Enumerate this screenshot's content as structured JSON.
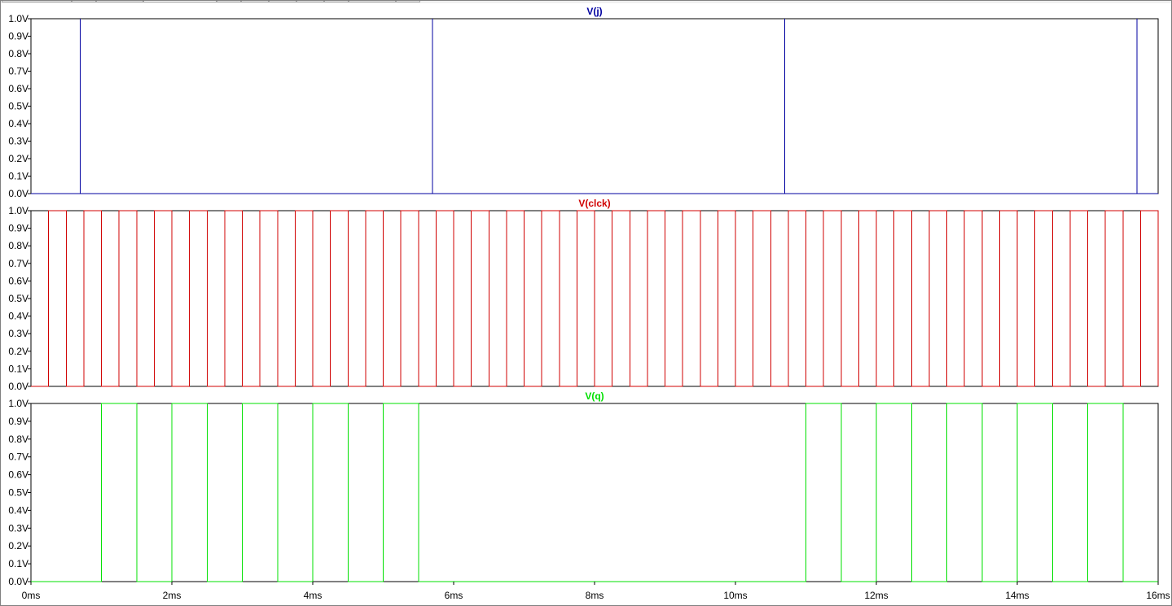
{
  "window": {
    "tabs": [
      "",
      "",
      "",
      "",
      "",
      "",
      "",
      "",
      "",
      "",
      ""
    ],
    "active_tab": 3
  },
  "chart_data": {
    "type": "line",
    "x_unit": "ms",
    "xlim": [
      0,
      16
    ],
    "x_ticks": [
      "0ms",
      "2ms",
      "4ms",
      "6ms",
      "8ms",
      "10ms",
      "12ms",
      "14ms",
      "16ms"
    ],
    "y_ticks": [
      "0.0V",
      "0.1V",
      "0.2V",
      "0.3V",
      "0.4V",
      "0.5V",
      "0.6V",
      "0.7V",
      "0.8V",
      "0.9V",
      "1.0V"
    ],
    "ylim": [
      0,
      1
    ],
    "grid": false,
    "series": [
      {
        "name": "V(j)",
        "color": "#0000a0",
        "pulse_times_ms": [
          0.7,
          5.7,
          10.7,
          15.7
        ],
        "low": 0,
        "high": 1
      },
      {
        "name": "V(clck)",
        "color": "#d00000",
        "low": 0,
        "high": 1,
        "first_rise_ms": 0.25,
        "period_ms": 0.5,
        "high_width_ms": 0.25
      },
      {
        "name": "V(q)",
        "color": "#00e000",
        "low": 0,
        "high": 1,
        "high_intervals_ms": [
          [
            1.0,
            1.5
          ],
          [
            2.0,
            2.5
          ],
          [
            3.0,
            3.5
          ],
          [
            4.0,
            4.5
          ],
          [
            5.0,
            5.5
          ],
          [
            11.0,
            11.5
          ],
          [
            12.0,
            12.5
          ],
          [
            13.0,
            13.5
          ],
          [
            14.0,
            14.5
          ],
          [
            15.0,
            15.5
          ]
        ]
      }
    ]
  }
}
